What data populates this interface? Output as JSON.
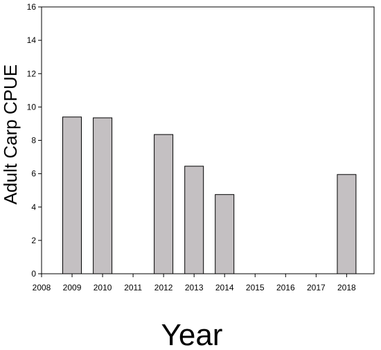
{
  "chart_data": {
    "type": "bar",
    "title": "",
    "xlabel": "Year",
    "ylabel": "Adult Carp CPUE",
    "categories": [
      "2009",
      "2010",
      "2012",
      "2013",
      "2014",
      "2018"
    ],
    "values": [
      9.4,
      9.35,
      8.35,
      6.45,
      4.75,
      5.95
    ],
    "x_ticks": [
      "2008",
      "2009",
      "2010",
      "2011",
      "2012",
      "2013",
      "2014",
      "2015",
      "2016",
      "2017",
      "2018"
    ],
    "y_ticks": [
      "0",
      "2",
      "4",
      "6",
      "8",
      "10",
      "12",
      "14",
      "16"
    ],
    "ylim": [
      0,
      16
    ],
    "xlim": [
      2008,
      2018.9
    ],
    "grid": false,
    "legend": "none",
    "bar_color": "#c4c0c2",
    "bar_edge_color": "#000000"
  }
}
